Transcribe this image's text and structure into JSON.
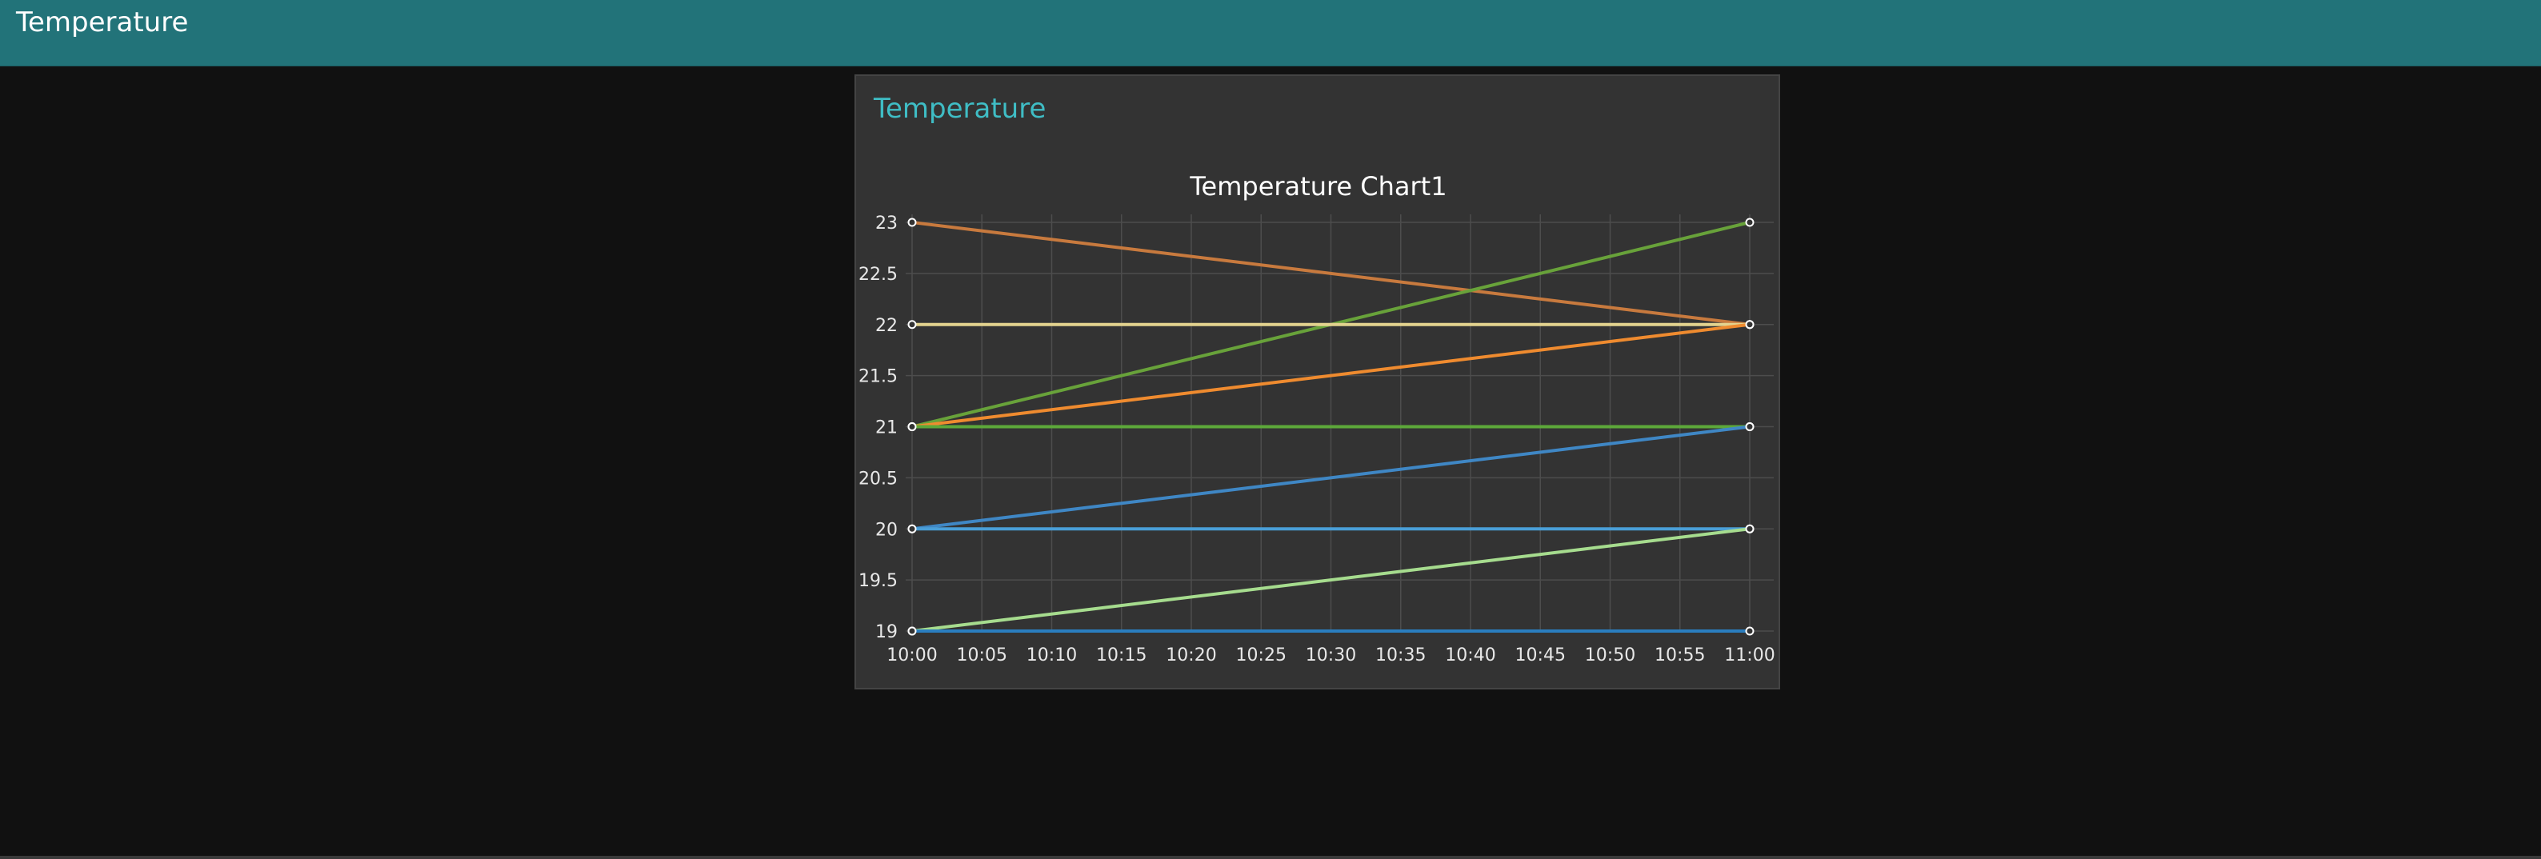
{
  "header": {
    "title": "Temperature"
  },
  "card": {
    "title": "Temperature"
  },
  "chart_data": {
    "type": "line",
    "title": "Temperature Chart1",
    "xlabel": "",
    "ylabel": "",
    "x_ticks": [
      "10:00",
      "10:05",
      "10:10",
      "10:15",
      "10:20",
      "10:25",
      "10:30",
      "10:35",
      "10:40",
      "10:45",
      "10:50",
      "10:55",
      "11:00"
    ],
    "y_ticks": [
      "19",
      "19.5",
      "20",
      "20.5",
      "21",
      "21.5",
      "22",
      "22.5",
      "23"
    ],
    "xlim": [
      "10:00",
      "11:00"
    ],
    "ylim": [
      19,
      23
    ],
    "grid": true,
    "legend": "none",
    "x": [
      "10:00",
      "11:00"
    ],
    "series": [
      {
        "values": [
          23,
          22
        ],
        "color": "#c87a3e"
      },
      {
        "values": [
          21,
          23
        ],
        "color": "#68a23a"
      },
      {
        "values": [
          22,
          22
        ],
        "color": "#e3d38f"
      },
      {
        "values": [
          21,
          22
        ],
        "color": "#ef8b2f"
      },
      {
        "values": [
          21,
          21
        ],
        "color": "#5da83a"
      },
      {
        "values": [
          20,
          21
        ],
        "color": "#3f87c5"
      },
      {
        "values": [
          20,
          20
        ],
        "color": "#4a9fd8"
      },
      {
        "values": [
          19,
          20
        ],
        "color": "#a6dc8e"
      },
      {
        "values": [
          19,
          19
        ],
        "color": "#2a7ec0"
      }
    ]
  }
}
